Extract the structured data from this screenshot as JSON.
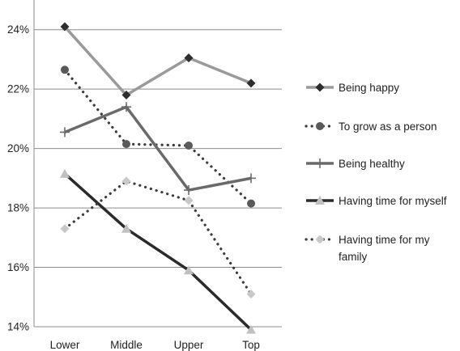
{
  "chart_data": {
    "type": "line",
    "title": "",
    "xlabel": "",
    "ylabel": "",
    "categories": [
      "Lower",
      "Middle",
      "Upper",
      "Top"
    ],
    "ylim": [
      0.14,
      0.25
    ],
    "y_ticks": [
      "14%",
      "16%",
      "18%",
      "20%",
      "22%",
      "24%"
    ],
    "grid": "horizontal",
    "legend_position": "right",
    "series": [
      {
        "name": "Being happy",
        "values": [
          0.241,
          0.218,
          0.2305,
          0.222
        ],
        "color": "#9a9a9a",
        "dashed": false,
        "marker": "diamond"
      },
      {
        "name": "To grow as a person",
        "values": [
          0.2265,
          0.2015,
          0.201,
          0.1815
        ],
        "color": "#3a3a3a",
        "dashed": true,
        "marker": "circle"
      },
      {
        "name": "Being healthy",
        "values": [
          0.2055,
          0.214,
          0.186,
          0.19
        ],
        "color": "#6a6a6a",
        "dashed": false,
        "marker": "plus"
      },
      {
        "name": "Having time for myself",
        "values": [
          0.1915,
          0.173,
          0.159,
          0.139
        ],
        "color": "#2b2b2b",
        "dashed": false,
        "marker": "triangle"
      },
      {
        "name": "Having time for my family",
        "values": [
          0.173,
          0.189,
          0.1825,
          0.151
        ],
        "color": "#3a3a3a",
        "dashed": true,
        "marker": "diamond-light"
      }
    ]
  }
}
